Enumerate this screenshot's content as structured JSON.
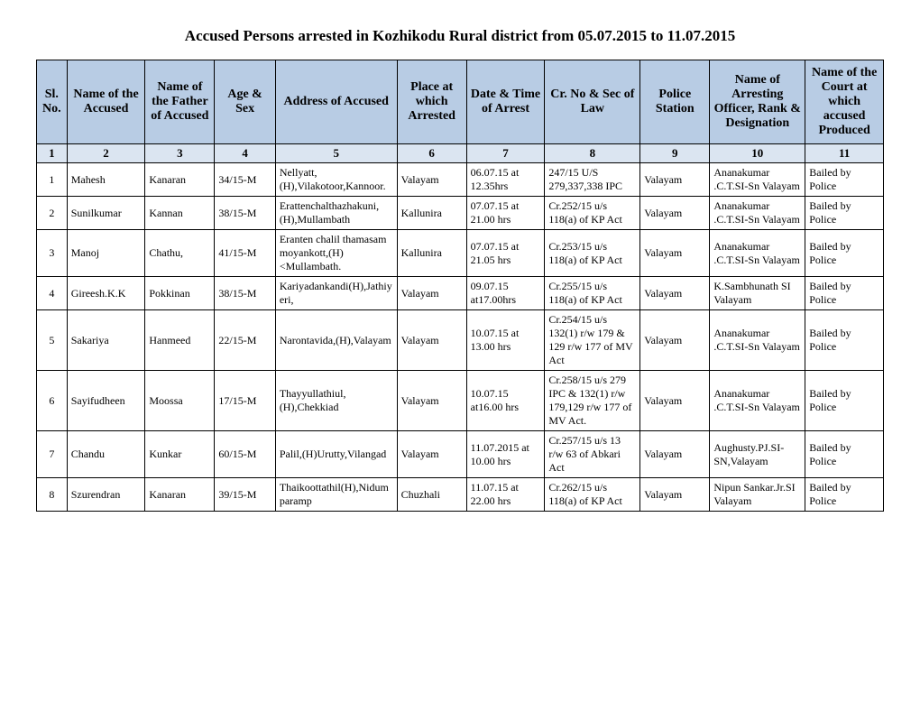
{
  "title": "Accused Persons arrested in   Kozhikodu Rural  district from  05.07.2015 to 11.07.2015",
  "headers": {
    "h1": "Sl. No.",
    "h2": "Name of the Accused",
    "h3": "Name of the Father of Accused",
    "h4": "Age & Sex",
    "h5": "Address of Accused",
    "h6": "Place at which Arrested",
    "h7": "Date & Time of Arrest",
    "h8": "Cr. No & Sec of Law",
    "h9": "Police Station",
    "h10": "Name of Arresting Officer, Rank & Designation",
    "h11": "Name of the Court at which accused Produced"
  },
  "nums": {
    "n1": "1",
    "n2": "2",
    "n3": "3",
    "n4": "4",
    "n5": "5",
    "n6": "6",
    "n7": "7",
    "n8": "8",
    "n9": "9",
    "n10": "10",
    "n11": "11"
  },
  "rows": [
    {
      "sl": "1",
      "name": "Mahesh",
      "father": "Kanaran",
      "age": "34/15-M",
      "addr": "Nellyatt,(H),Vilakotoor,Kannoor.",
      "place": "Valayam",
      "dt": "06.07.15 at 12.35hrs",
      "cr": "247/15 U/S 279,337,338 IPC",
      "ps": "Valayam",
      "off": "Ananakumar .C.T.SI-Sn Valayam",
      "court": "Bailed by Police"
    },
    {
      "sl": "2",
      "name": "Sunilkumar",
      "father": "Kannan",
      "age": "38/15-M",
      "addr": "Erattenchalthazhakuni,(H),Mullambath",
      "place": "Kallunira",
      "dt": "07.07.15 at 21.00 hrs",
      "cr": "Cr.252/15 u/s 118(a) of KP Act",
      "ps": "Valayam",
      "off": "Ananakumar .C.T.SI-Sn Valayam",
      "court": "Bailed by Police"
    },
    {
      "sl": "3",
      "name": "Manoj",
      "father": "Chathu,",
      "age": "41/15-M",
      "addr": "Eranten chalil thamasam moyankott,(H)<Mullambath.",
      "place": "Kallunira",
      "dt": "07.07.15 at 21.05 hrs",
      "cr": "Cr.253/15 u/s 118(a) of KP Act",
      "ps": "Valayam",
      "off": "Ananakumar .C.T.SI-Sn Valayam",
      "court": "Bailed by Police"
    },
    {
      "sl": "4",
      "name": "Gireesh.K.K",
      "father": "Pokkinan",
      "age": "38/15-M",
      "addr": "Kariyadankandi(H),Jathiyeri,",
      "place": "Valayam",
      "dt": "09.07.15 at17.00hrs",
      "cr": "Cr.255/15 u/s 118(a) of KP Act",
      "ps": "Valayam",
      "off": "K.Sambhunath SI Valayam",
      "court": "Bailed by Police"
    },
    {
      "sl": "5",
      "name": "Sakariya",
      "father": "Hanmeed",
      "age": "22/15-M",
      "addr": "Narontavida,(H),Valayam",
      "place": "Valayam",
      "dt": "10.07.15 at 13.00 hrs",
      "cr": "Cr.254/15 u/s 132(1) r/w 179 & 129 r/w 177 of MV Act",
      "ps": "Valayam",
      "off": "Ananakumar .C.T.SI-Sn Valayam",
      "court": "Bailed by Police"
    },
    {
      "sl": "6",
      "name": "Sayifudheen",
      "father": "Moossa",
      "age": "17/15-M",
      "addr": "Thayyullathiul,(H),Chekkiad",
      "place": "Valayam",
      "dt": "10.07.15 at16.00 hrs",
      "cr": "Cr.258/15 u/s 279 IPC & 132(1) r/w 179,129 r/w 177 of MV Act.",
      "ps": "Valayam",
      "off": "Ananakumar .C.T.SI-Sn Valayam",
      "court": "Bailed by Police"
    },
    {
      "sl": "7",
      "name": "Chandu",
      "father": "Kunkar",
      "age": "60/15-M",
      "addr": "Palil,(H)Urutty,Vilangad",
      "place": "Valayam",
      "dt": "11.07.2015 at 10.00 hrs",
      "cr": "Cr.257/15 u/s 13 r/w 63 of Abkari Act",
      "ps": "Valayam",
      "off": "Aughusty.PJ.SI-SN,Valayam",
      "court": "Bailed by Police"
    },
    {
      "sl": "8",
      "name": "Szurendran",
      "father": "Kanaran",
      "age": "39/15-M",
      "addr": "Thaikoottathil(H),Nidumparamp",
      "place": "Chuzhali",
      "dt": "11.07.15 at 22.00 hrs",
      "cr": "Cr.262/15 u/s 118(a) of KP Act",
      "ps": "Valayam",
      "off": "Nipun Sankar.Jr.SI Valayam",
      "court": "Bailed by Police"
    }
  ]
}
